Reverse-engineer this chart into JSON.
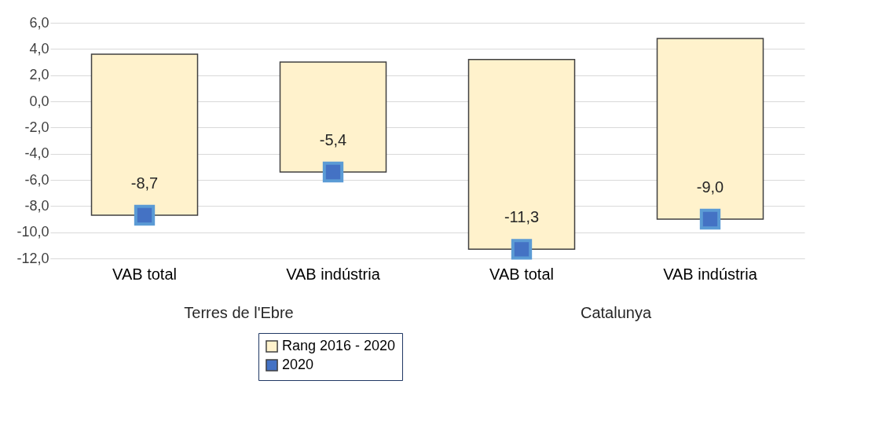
{
  "chart_data": {
    "type": "bar",
    "categories": [
      "VAB total",
      "VAB indústria",
      "VAB total",
      "VAB indústria"
    ],
    "series": [
      {
        "name": "Rang 2016 - 2020",
        "color": "#fff2cc",
        "base": [
          -8.7,
          -5.4,
          -11.3,
          -9.0
        ],
        "values": [
          12.3,
          8.4,
          14.5,
          13.8
        ]
      },
      {
        "type": "scatter",
        "name": "2020",
        "color": "#4472c4",
        "values": [
          -8.7,
          -5.4,
          -11.3,
          -9.0
        ],
        "value_labels": [
          "-8,7",
          "-5,4",
          "-11,3",
          "-9,0"
        ],
        "marker": "square"
      }
    ],
    "annotations": [
      "Terres de l'Ebre",
      "Catalunya"
    ],
    "ylim": [
      -12,
      6
    ],
    "yticks": [
      {
        "value": -12,
        "label": "-12,0"
      },
      {
        "value": -10,
        "label": "-10,0"
      },
      {
        "value": -8,
        "label": "-8,0"
      },
      {
        "value": -6,
        "label": "-6,0"
      },
      {
        "value": -4,
        "label": "-4,0"
      },
      {
        "value": -2,
        "label": "-2,0"
      },
      {
        "value": 0,
        "label": "0,0"
      },
      {
        "value": 2,
        "label": "2,0"
      },
      {
        "value": 4,
        "label": "4,0"
      },
      {
        "value": 6,
        "label": "6,0"
      }
    ],
    "grid": "y",
    "legend": "bottom"
  }
}
